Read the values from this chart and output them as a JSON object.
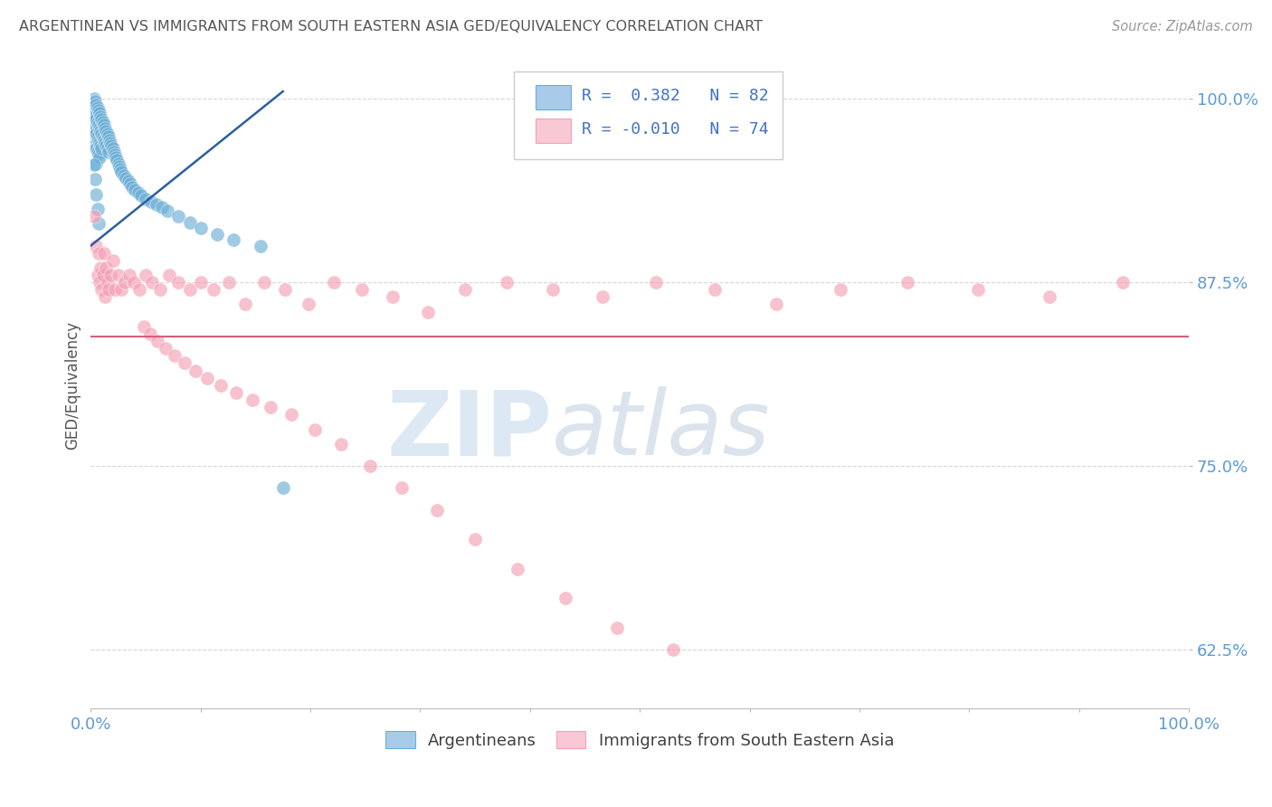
{
  "title": "ARGENTINEAN VS IMMIGRANTS FROM SOUTH EASTERN ASIA GED/EQUIVALENCY CORRELATION CHART",
  "source_text": "Source: ZipAtlas.com",
  "ylabel": "GED/Equivalency",
  "xlim": [
    0.0,
    1.0
  ],
  "ylim": [
    0.585,
    1.025
  ],
  "yticks": [
    0.625,
    0.75,
    0.875,
    1.0
  ],
  "ytick_labels": [
    "62.5%",
    "75.0%",
    "87.5%",
    "100.0%"
  ],
  "blue_R": 0.382,
  "blue_N": 82,
  "pink_R": -0.01,
  "pink_N": 74,
  "blue_color": "#6baed6",
  "pink_color": "#f4a0b5",
  "blue_line_color": "#2c5f9e",
  "pink_line_color": "#d4607a",
  "legend_label_blue": "Argentineans",
  "legend_label_pink": "Immigrants from South Eastern Asia",
  "watermark_zip": "ZIP",
  "watermark_atlas": "atlas",
  "background_color": "#ffffff",
  "grid_color": "#cccccc",
  "axis_label_color": "#5b9bd5",
  "title_color": "#555555",
  "blue_scatter_x": [
    0.002,
    0.002,
    0.002,
    0.003,
    0.003,
    0.003,
    0.004,
    0.004,
    0.004,
    0.004,
    0.005,
    0.005,
    0.005,
    0.005,
    0.005,
    0.006,
    0.006,
    0.006,
    0.006,
    0.007,
    0.007,
    0.007,
    0.007,
    0.008,
    0.008,
    0.008,
    0.008,
    0.009,
    0.009,
    0.009,
    0.01,
    0.01,
    0.01,
    0.011,
    0.011,
    0.012,
    0.012,
    0.013,
    0.013,
    0.014,
    0.014,
    0.015,
    0.015,
    0.016,
    0.016,
    0.017,
    0.018,
    0.019,
    0.02,
    0.021,
    0.022,
    0.023,
    0.024,
    0.025,
    0.026,
    0.027,
    0.028,
    0.03,
    0.032,
    0.034,
    0.036,
    0.038,
    0.04,
    0.043,
    0.046,
    0.05,
    0.055,
    0.06,
    0.065,
    0.07,
    0.08,
    0.09,
    0.1,
    0.115,
    0.13,
    0.155,
    0.175,
    0.003,
    0.004,
    0.005,
    0.006,
    0.007
  ],
  "blue_scatter_y": [
    0.995,
    0.985,
    0.975,
    1.0,
    0.99,
    0.98,
    0.998,
    0.988,
    0.978,
    0.968,
    0.996,
    0.986,
    0.976,
    0.966,
    0.956,
    0.994,
    0.984,
    0.974,
    0.964,
    0.992,
    0.982,
    0.972,
    0.962,
    0.99,
    0.98,
    0.97,
    0.96,
    0.988,
    0.978,
    0.968,
    0.986,
    0.976,
    0.966,
    0.984,
    0.974,
    0.982,
    0.972,
    0.98,
    0.97,
    0.978,
    0.968,
    0.976,
    0.966,
    0.974,
    0.964,
    0.972,
    0.97,
    0.968,
    0.966,
    0.964,
    0.962,
    0.96,
    0.958,
    0.956,
    0.954,
    0.952,
    0.95,
    0.948,
    0.946,
    0.944,
    0.942,
    0.94,
    0.938,
    0.936,
    0.934,
    0.932,
    0.93,
    0.928,
    0.926,
    0.924,
    0.92,
    0.916,
    0.912,
    0.908,
    0.904,
    0.9,
    0.735,
    0.955,
    0.945,
    0.935,
    0.925,
    0.915
  ],
  "pink_scatter_x": [
    0.003,
    0.005,
    0.006,
    0.007,
    0.008,
    0.009,
    0.01,
    0.011,
    0.012,
    0.013,
    0.014,
    0.015,
    0.016,
    0.018,
    0.02,
    0.022,
    0.025,
    0.028,
    0.031,
    0.035,
    0.039,
    0.044,
    0.05,
    0.056,
    0.063,
    0.071,
    0.08,
    0.09,
    0.1,
    0.112,
    0.126,
    0.141,
    0.158,
    0.177,
    0.198,
    0.221,
    0.247,
    0.275,
    0.307,
    0.341,
    0.379,
    0.421,
    0.466,
    0.515,
    0.568,
    0.624,
    0.683,
    0.744,
    0.808,
    0.873,
    0.94,
    0.048,
    0.054,
    0.061,
    0.068,
    0.076,
    0.085,
    0.095,
    0.106,
    0.118,
    0.132,
    0.147,
    0.164,
    0.183,
    0.204,
    0.228,
    0.254,
    0.283,
    0.315,
    0.35,
    0.389,
    0.432,
    0.479,
    0.53
  ],
  "pink_scatter_y": [
    0.92,
    0.9,
    0.88,
    0.895,
    0.875,
    0.885,
    0.87,
    0.88,
    0.895,
    0.865,
    0.885,
    0.875,
    0.87,
    0.88,
    0.89,
    0.87,
    0.88,
    0.87,
    0.875,
    0.88,
    0.875,
    0.87,
    0.88,
    0.875,
    0.87,
    0.88,
    0.875,
    0.87,
    0.875,
    0.87,
    0.875,
    0.86,
    0.875,
    0.87,
    0.86,
    0.875,
    0.87,
    0.865,
    0.855,
    0.87,
    0.875,
    0.87,
    0.865,
    0.875,
    0.87,
    0.86,
    0.87,
    0.875,
    0.87,
    0.865,
    0.875,
    0.845,
    0.84,
    0.835,
    0.83,
    0.825,
    0.82,
    0.815,
    0.81,
    0.805,
    0.8,
    0.795,
    0.79,
    0.785,
    0.775,
    0.765,
    0.75,
    0.735,
    0.72,
    0.7,
    0.68,
    0.66,
    0.64,
    0.625
  ],
  "pink_line_y": 0.838,
  "blue_line_x0": 0.0,
  "blue_line_y0": 0.9,
  "blue_line_x1": 0.175,
  "blue_line_y1": 1.005
}
